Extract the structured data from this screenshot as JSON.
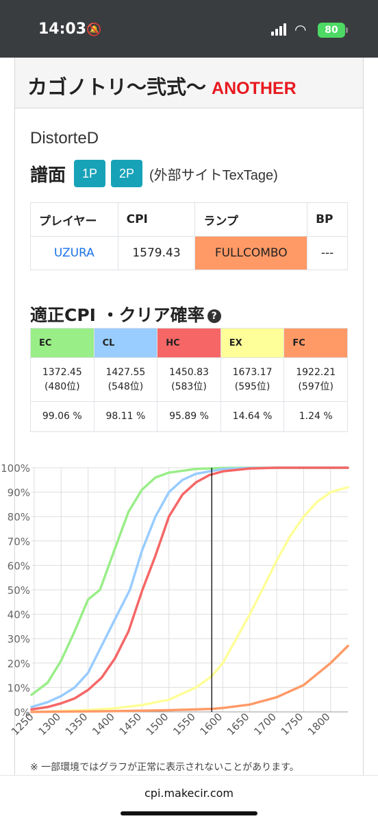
{
  "status": {
    "time": "14:03",
    "battery": "80"
  },
  "header": {
    "title": "カゴノトリ〜弐式〜",
    "difficulty": "ANOTHER",
    "difficulty_color": "#e8191f"
  },
  "song": {
    "name": "DistorteD",
    "score_label": "譜面",
    "btn_1p": "1P",
    "btn_2p": "2P",
    "external": "(外部サイトTexTage)"
  },
  "player_table": {
    "headers": [
      "プレイヤー",
      "CPI",
      "ランプ",
      "BP"
    ],
    "row": {
      "name": "UZURA",
      "cpi": "1579.43",
      "lamp": "FULLCOMBO",
      "bp": "---"
    }
  },
  "cpi_section": {
    "heading": "適正CPI ・クリア確率",
    "columns": [
      {
        "label": "EC",
        "color": "#99ee88",
        "cpi": "1372.45",
        "rank": "(480位)",
        "prob": "99.06 %"
      },
      {
        "label": "CL",
        "color": "#99ccff",
        "cpi": "1427.55",
        "rank": "(548位)",
        "prob": "98.11 %"
      },
      {
        "label": "HC",
        "color": "#f66666",
        "cpi": "1450.83",
        "rank": "(583位)",
        "prob": "95.89 %"
      },
      {
        "label": "EX",
        "color": "#ffff99",
        "cpi": "1673.17",
        "rank": "(595位)",
        "prob": "14.64 %"
      },
      {
        "label": "FC",
        "color": "#ff9966",
        "cpi": "1922.21",
        "rank": "(597位)",
        "prob": "1.24 %"
      }
    ]
  },
  "chart_data": {
    "type": "line",
    "x_range": [
      1245,
      1832
    ],
    "ylim": [
      0,
      100
    ],
    "x_ticks": [
      1250,
      1300,
      1350,
      1400,
      1450,
      1500,
      1550,
      1600,
      1650,
      1700,
      1750,
      1800
    ],
    "x_tick_labels": [
      "1250",
      "1300",
      "1350",
      "1400",
      "1450",
      "1500",
      "1550",
      "1600",
      "1650",
      "1700",
      "1750",
      "1800"
    ],
    "y_ticks": [
      0,
      10,
      20,
      30,
      40,
      50,
      60,
      70,
      80,
      90,
      100
    ],
    "y_tick_labels": [
      "0%",
      "10%",
      "20%",
      "30%",
      "40%",
      "50%",
      "60%",
      "70%",
      "80%",
      "90%",
      "100%"
    ],
    "marker_x": 1579.43,
    "grid": true,
    "series": [
      {
        "name": "EC",
        "color": "#99ee88",
        "x": [
          1245,
          1275,
          1300,
          1325,
          1350,
          1372,
          1400,
          1425,
          1450,
          1475,
          1500,
          1550,
          1600,
          1650,
          1700,
          1750,
          1800,
          1832
        ],
        "y": [
          7,
          12,
          21,
          33,
          46,
          50,
          67,
          82,
          91,
          96,
          98,
          99.5,
          99.9,
          100,
          100,
          100,
          100,
          100
        ]
      },
      {
        "name": "CL",
        "color": "#99ccff",
        "x": [
          1245,
          1275,
          1300,
          1325,
          1350,
          1375,
          1400,
          1427.55,
          1450,
          1475,
          1500,
          1525,
          1550,
          1600,
          1650,
          1700,
          1750,
          1800,
          1832
        ],
        "y": [
          2,
          4,
          6.5,
          10,
          16,
          27,
          38,
          50,
          66,
          80,
          90,
          95,
          97.5,
          99.5,
          99.9,
          100,
          100,
          100,
          100
        ]
      },
      {
        "name": "HC",
        "color": "#f66666",
        "x": [
          1245,
          1275,
          1300,
          1325,
          1350,
          1375,
          1400,
          1425,
          1450.83,
          1475,
          1500,
          1525,
          1550,
          1575,
          1600,
          1650,
          1700,
          1750,
          1800,
          1832
        ],
        "y": [
          1,
          2,
          3.5,
          5.5,
          9,
          14,
          22,
          33,
          50,
          64,
          80,
          89,
          94,
          97,
          98.5,
          99.7,
          100,
          100,
          100,
          100
        ]
      },
      {
        "name": "EX",
        "color": "#ffff99",
        "x": [
          1245,
          1300,
          1350,
          1400,
          1450,
          1500,
          1525,
          1550,
          1579.43,
          1600,
          1625,
          1650,
          1673.17,
          1700,
          1725,
          1750,
          1775,
          1800,
          1832
        ],
        "y": [
          0,
          0.3,
          0.8,
          1.5,
          2.8,
          5,
          7.5,
          10,
          14.64,
          20,
          30,
          40,
          50,
          62,
          72,
          80,
          86,
          90,
          92
        ]
      },
      {
        "name": "FC",
        "color": "#ff9966",
        "x": [
          1245,
          1300,
          1350,
          1400,
          1450,
          1500,
          1550,
          1579.43,
          1600,
          1650,
          1700,
          1750,
          1800,
          1832
        ],
        "y": [
          0,
          0.1,
          0.2,
          0.3,
          0.5,
          0.7,
          1,
          1.24,
          1.6,
          3,
          6,
          11,
          20,
          27
        ]
      }
    ]
  },
  "note": "※ 一部環境ではグラフが正常に表示されないことがあります。",
  "footer": {
    "url": "cpi.makecir.com"
  }
}
